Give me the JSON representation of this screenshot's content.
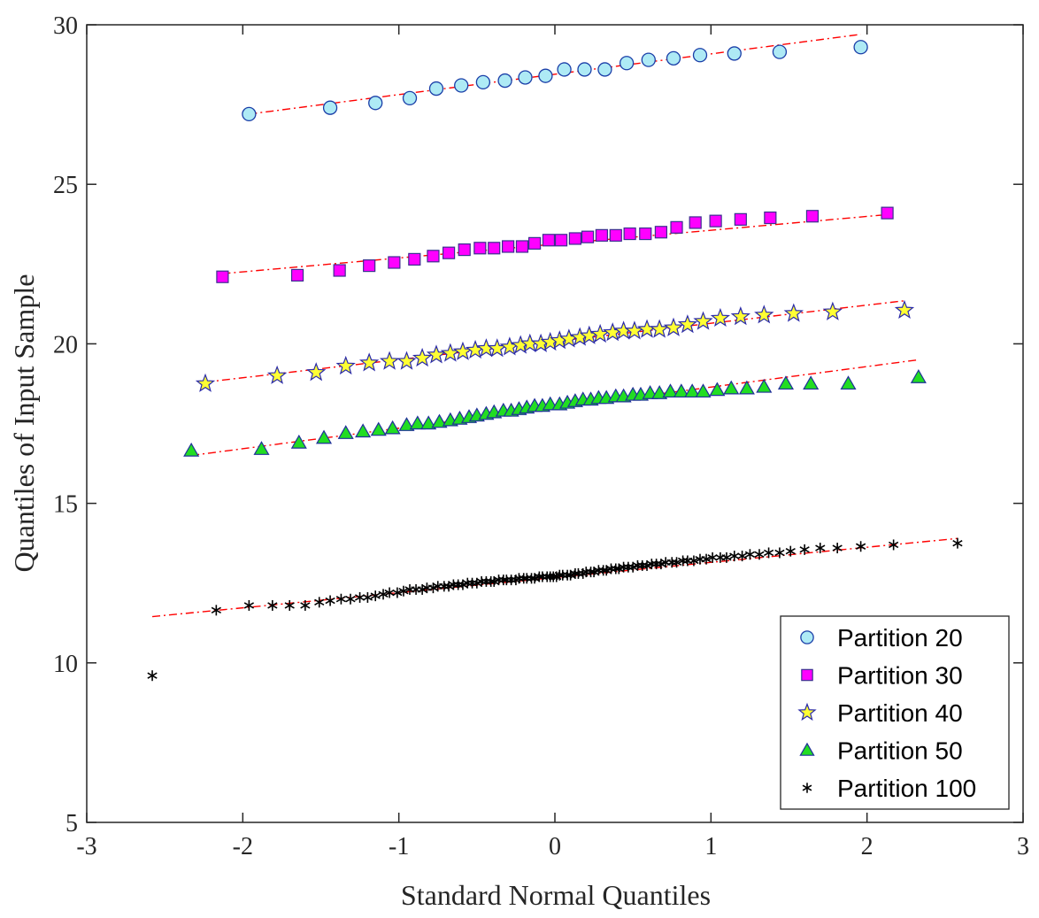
{
  "chart_data": {
    "type": "scatter",
    "title": "",
    "xlabel": "Standard Normal Quantiles",
    "ylabel": "Quantiles of Input Sample",
    "xlim": [
      -3,
      3
    ],
    "ylim": [
      5,
      30
    ],
    "xticks": [
      -3,
      -2,
      -1,
      0,
      1,
      2,
      3
    ],
    "yticks": [
      5,
      10,
      15,
      20,
      25,
      30
    ],
    "xtick_labels": [
      "-3",
      "-2",
      "-1",
      "0",
      "1",
      "2",
      "3"
    ],
    "ytick_labels": [
      "5",
      "10",
      "15",
      "20",
      "25",
      "30"
    ],
    "legend_position": "bottom-right",
    "reference_line_color": "#ff0000",
    "series": [
      {
        "name": "Partition 20",
        "marker": "circle",
        "fill": "#aeeaf5",
        "stroke": "#1a3ea8",
        "x": [
          -1.96,
          -1.44,
          -1.15,
          -0.93,
          -0.76,
          -0.6,
          -0.46,
          -0.32,
          -0.19,
          -0.06,
          0.06,
          0.19,
          0.32,
          0.46,
          0.6,
          0.76,
          0.93,
          1.15,
          1.44,
          1.96
        ],
        "y": [
          27.2,
          27.4,
          27.55,
          27.7,
          28.0,
          28.1,
          28.2,
          28.25,
          28.35,
          28.4,
          28.6,
          28.6,
          28.6,
          28.8,
          28.9,
          28.95,
          29.05,
          29.1,
          29.15,
          29.3
        ],
        "ref_line": {
          "x": [
            -1.96,
            1.96
          ],
          "y": [
            27.2,
            29.7
          ]
        }
      },
      {
        "name": "Partition 30",
        "marker": "square",
        "fill": "#ff00ff",
        "stroke": "#3b2f8f",
        "x": [
          -2.13,
          -1.65,
          -1.38,
          -1.19,
          -1.03,
          -0.9,
          -0.78,
          -0.68,
          -0.58,
          -0.48,
          -0.39,
          -0.3,
          -0.21,
          -0.13,
          -0.04,
          0.04,
          0.13,
          0.21,
          0.3,
          0.39,
          0.48,
          0.58,
          0.68,
          0.78,
          0.9,
          1.03,
          1.19,
          1.38,
          1.65,
          2.13
        ],
        "y": [
          22.1,
          22.15,
          22.3,
          22.45,
          22.55,
          22.65,
          22.75,
          22.85,
          22.95,
          23.0,
          23.0,
          23.05,
          23.05,
          23.15,
          23.25,
          23.25,
          23.3,
          23.35,
          23.4,
          23.4,
          23.45,
          23.45,
          23.5,
          23.65,
          23.8,
          23.85,
          23.9,
          23.95,
          24.0,
          24.1
        ],
        "ref_line": {
          "x": [
            -2.13,
            2.13
          ],
          "y": [
            22.2,
            24.05
          ]
        }
      },
      {
        "name": "Partition 40",
        "marker": "star",
        "fill": "#ffff33",
        "stroke": "#2a2aa8",
        "x": [
          -2.24,
          -1.78,
          -1.53,
          -1.34,
          -1.19,
          -1.06,
          -0.95,
          -0.85,
          -0.76,
          -0.67,
          -0.59,
          -0.51,
          -0.44,
          -0.37,
          -0.29,
          -0.22,
          -0.16,
          -0.09,
          -0.03,
          0.03,
          0.09,
          0.16,
          0.22,
          0.29,
          0.37,
          0.44,
          0.51,
          0.59,
          0.67,
          0.76,
          0.85,
          0.95,
          1.06,
          1.19,
          1.34,
          1.53,
          1.78,
          2.24
        ],
        "y": [
          18.75,
          19.0,
          19.1,
          19.3,
          19.4,
          19.45,
          19.45,
          19.55,
          19.65,
          19.7,
          19.75,
          19.8,
          19.85,
          19.85,
          19.9,
          19.95,
          20.0,
          20.0,
          20.05,
          20.1,
          20.15,
          20.2,
          20.25,
          20.3,
          20.35,
          20.4,
          20.4,
          20.45,
          20.45,
          20.5,
          20.6,
          20.7,
          20.8,
          20.85,
          20.9,
          20.95,
          21.0,
          21.05
        ],
        "ref_line": {
          "x": [
            -2.24,
            2.24
          ],
          "y": [
            18.8,
            21.35
          ]
        }
      },
      {
        "name": "Partition 50",
        "marker": "triangle",
        "fill": "#22dd22",
        "stroke": "#1f2f9a",
        "x": [
          -2.33,
          -1.88,
          -1.64,
          -1.48,
          -1.34,
          -1.23,
          -1.13,
          -1.04,
          -0.95,
          -0.88,
          -0.81,
          -0.74,
          -0.67,
          -0.61,
          -0.55,
          -0.5,
          -0.44,
          -0.39,
          -0.33,
          -0.28,
          -0.23,
          -0.18,
          -0.13,
          -0.08,
          -0.03,
          0.03,
          0.08,
          0.13,
          0.18,
          0.23,
          0.28,
          0.33,
          0.39,
          0.44,
          0.5,
          0.55,
          0.61,
          0.67,
          0.74,
          0.81,
          0.88,
          0.95,
          1.04,
          1.13,
          1.23,
          1.34,
          1.48,
          1.64,
          1.88,
          2.33
        ],
        "y": [
          16.65,
          16.7,
          16.9,
          17.05,
          17.2,
          17.25,
          17.3,
          17.35,
          17.45,
          17.5,
          17.5,
          17.55,
          17.6,
          17.65,
          17.7,
          17.75,
          17.8,
          17.85,
          17.9,
          17.9,
          17.95,
          18.0,
          18.05,
          18.05,
          18.1,
          18.1,
          18.15,
          18.2,
          18.25,
          18.25,
          18.3,
          18.3,
          18.35,
          18.35,
          18.4,
          18.4,
          18.45,
          18.45,
          18.5,
          18.5,
          18.5,
          18.5,
          18.55,
          18.6,
          18.6,
          18.65,
          18.75,
          18.75,
          18.75,
          18.95
        ],
        "ref_line": {
          "x": [
            -2.33,
            2.33
          ],
          "y": [
            16.5,
            19.5
          ]
        }
      },
      {
        "name": "Partition 100",
        "marker": "asterisk",
        "fill": "none",
        "stroke": "#000000",
        "x": [
          -2.58,
          -2.17,
          -1.96,
          -1.81,
          -1.7,
          -1.6,
          -1.51,
          -1.44,
          -1.37,
          -1.31,
          -1.25,
          -1.2,
          -1.15,
          -1.1,
          -1.06,
          -1.01,
          -0.97,
          -0.93,
          -0.89,
          -0.85,
          -0.82,
          -0.78,
          -0.75,
          -0.71,
          -0.68,
          -0.65,
          -0.62,
          -0.59,
          -0.56,
          -0.53,
          -0.5,
          -0.47,
          -0.44,
          -0.41,
          -0.39,
          -0.36,
          -0.33,
          -0.31,
          -0.28,
          -0.25,
          -0.23,
          -0.2,
          -0.18,
          -0.15,
          -0.13,
          -0.1,
          -0.08,
          -0.05,
          -0.03,
          -0.01,
          0.01,
          0.03,
          0.05,
          0.08,
          0.1,
          0.13,
          0.15,
          0.18,
          0.2,
          0.23,
          0.25,
          0.28,
          0.31,
          0.33,
          0.36,
          0.39,
          0.41,
          0.44,
          0.47,
          0.5,
          0.53,
          0.56,
          0.59,
          0.62,
          0.65,
          0.68,
          0.71,
          0.75,
          0.78,
          0.82,
          0.85,
          0.89,
          0.93,
          0.97,
          1.01,
          1.06,
          1.1,
          1.15,
          1.2,
          1.25,
          1.31,
          1.37,
          1.44,
          1.51,
          1.6,
          1.7,
          1.81,
          1.96,
          2.17,
          2.58
        ],
        "y": [
          9.6,
          11.65,
          11.8,
          11.8,
          11.8,
          11.8,
          11.9,
          11.95,
          12.0,
          12.0,
          12.05,
          12.05,
          12.1,
          12.15,
          12.2,
          12.2,
          12.25,
          12.3,
          12.3,
          12.3,
          12.35,
          12.35,
          12.4,
          12.4,
          12.4,
          12.45,
          12.45,
          12.45,
          12.5,
          12.5,
          12.5,
          12.55,
          12.55,
          12.55,
          12.55,
          12.6,
          12.6,
          12.6,
          12.6,
          12.6,
          12.65,
          12.65,
          12.65,
          12.65,
          12.65,
          12.7,
          12.7,
          12.7,
          12.7,
          12.7,
          12.7,
          12.75,
          12.75,
          12.75,
          12.75,
          12.8,
          12.8,
          12.8,
          12.85,
          12.85,
          12.85,
          12.9,
          12.9,
          12.9,
          12.95,
          12.95,
          12.95,
          13.0,
          13.0,
          13.0,
          13.05,
          13.05,
          13.05,
          13.1,
          13.1,
          13.1,
          13.15,
          13.15,
          13.15,
          13.2,
          13.2,
          13.2,
          13.25,
          13.25,
          13.3,
          13.3,
          13.3,
          13.35,
          13.35,
          13.4,
          13.4,
          13.45,
          13.45,
          13.5,
          13.55,
          13.6,
          13.6,
          13.65,
          13.7,
          13.75
        ],
        "ref_line": {
          "x": [
            -2.58,
            2.58
          ],
          "y": [
            11.45,
            13.9
          ]
        }
      }
    ]
  }
}
